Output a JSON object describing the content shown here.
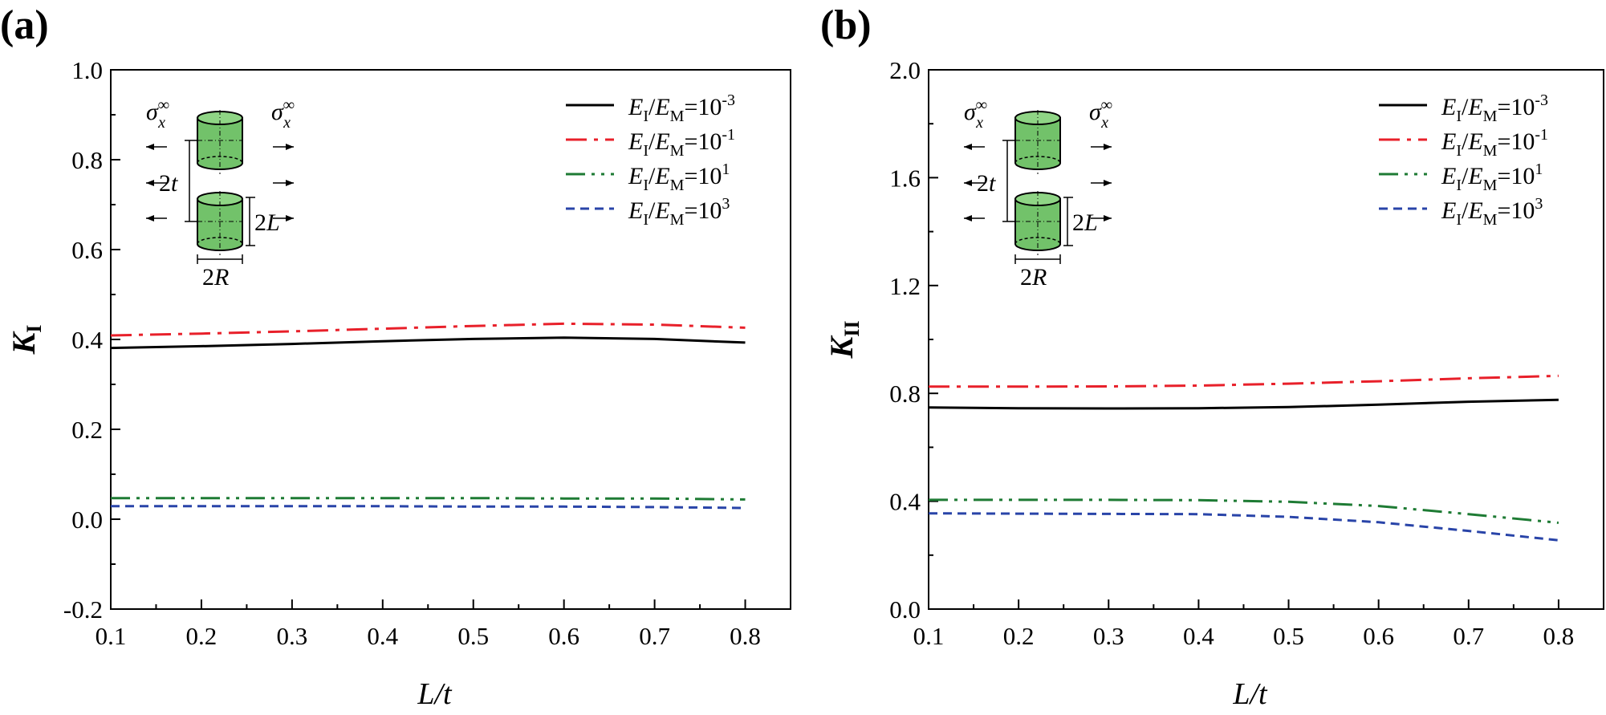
{
  "chart_data": [
    {
      "type": "line",
      "panel_label": "(a)",
      "ylabel": "K",
      "ylabel_sub": "I",
      "xlabel_main": "L",
      "xlabel_rest": "/t",
      "xlim": [
        0.1,
        0.85
      ],
      "ylim": [
        -0.2,
        1.0
      ],
      "xticks": [
        0.1,
        0.2,
        0.3,
        0.4,
        0.5,
        0.6,
        0.7,
        0.8
      ],
      "xtick_labels": [
        "0.1",
        "0.2",
        "0.3",
        "0.4",
        "0.5",
        "0.6",
        "0.7",
        "0.8"
      ],
      "yticks": [
        -0.2,
        0.0,
        0.2,
        0.4,
        0.6,
        0.8,
        1.0
      ],
      "ytick_labels": [
        "-0.2",
        "0.0",
        "0.2",
        "0.4",
        "0.6",
        "0.8",
        "1.0"
      ],
      "x": [
        0.1,
        0.2,
        0.3,
        0.4,
        0.5,
        0.6,
        0.7,
        0.8
      ],
      "series": [
        {
          "name": "E_I/E_M=10^-3",
          "exp": "-3",
          "color": "#000000",
          "dash": "none",
          "values": [
            0.381,
            0.385,
            0.39,
            0.396,
            0.401,
            0.404,
            0.401,
            0.393
          ]
        },
        {
          "name": "E_I/E_M=10^-1",
          "exp": "-1",
          "color": "#e8202a",
          "dash": "dashdot",
          "values": [
            0.409,
            0.413,
            0.418,
            0.424,
            0.43,
            0.435,
            0.433,
            0.426
          ]
        },
        {
          "name": "E_I/E_M=10^1",
          "exp": "1",
          "color": "#1e7b34",
          "dash": "dashdotdot",
          "values": [
            0.047,
            0.047,
            0.047,
            0.047,
            0.047,
            0.046,
            0.046,
            0.044
          ]
        },
        {
          "name": "E_I/E_M=10^3",
          "exp": "3",
          "color": "#2944a8",
          "dash": "dash",
          "values": [
            0.029,
            0.029,
            0.029,
            0.029,
            0.028,
            0.028,
            0.027,
            0.025
          ]
        }
      ]
    },
    {
      "type": "line",
      "panel_label": "(b)",
      "ylabel": "K",
      "ylabel_sub": "II",
      "xlabel_main": "L",
      "xlabel_rest": "/t",
      "xlim": [
        0.1,
        0.85
      ],
      "ylim": [
        0.0,
        2.0
      ],
      "xticks": [
        0.1,
        0.2,
        0.3,
        0.4,
        0.5,
        0.6,
        0.7,
        0.8
      ],
      "xtick_labels": [
        "0.1",
        "0.2",
        "0.3",
        "0.4",
        "0.5",
        "0.6",
        "0.7",
        "0.8"
      ],
      "yticks": [
        0.0,
        0.4,
        0.8,
        1.2,
        1.6,
        2.0
      ],
      "ytick_labels": [
        "0.0",
        "0.4",
        "0.8",
        "1.2",
        "1.6",
        "2.0"
      ],
      "x": [
        0.1,
        0.2,
        0.3,
        0.4,
        0.5,
        0.6,
        0.7,
        0.8
      ],
      "series": [
        {
          "name": "E_I/E_M=10^-3",
          "exp": "-3",
          "color": "#000000",
          "dash": "none",
          "values": [
            0.748,
            0.745,
            0.744,
            0.745,
            0.749,
            0.758,
            0.769,
            0.776
          ]
        },
        {
          "name": "E_I/E_M=10^-1",
          "exp": "-1",
          "color": "#e8202a",
          "dash": "dashdot",
          "values": [
            0.825,
            0.825,
            0.826,
            0.829,
            0.836,
            0.845,
            0.856,
            0.865
          ]
        },
        {
          "name": "E_I/E_M=10^1",
          "exp": "1",
          "color": "#1e7b34",
          "dash": "dashdotdot",
          "values": [
            0.405,
            0.405,
            0.405,
            0.404,
            0.398,
            0.382,
            0.352,
            0.32
          ]
        },
        {
          "name": "E_I/E_M=10^3",
          "exp": "3",
          "color": "#2944a8",
          "dash": "dash",
          "values": [
            0.355,
            0.354,
            0.353,
            0.352,
            0.342,
            0.322,
            0.29,
            0.255
          ]
        }
      ]
    }
  ],
  "inset": {
    "sigma": "σ",
    "sigma_sub": "x",
    "sigma_sup": "∞",
    "two": "2",
    "t": "t",
    "L": "L",
    "R": "R"
  },
  "legend_text": {
    "E": "E",
    "sub_I": "I",
    "slash": "/",
    "sub_M": "M",
    "eq": "=10"
  }
}
